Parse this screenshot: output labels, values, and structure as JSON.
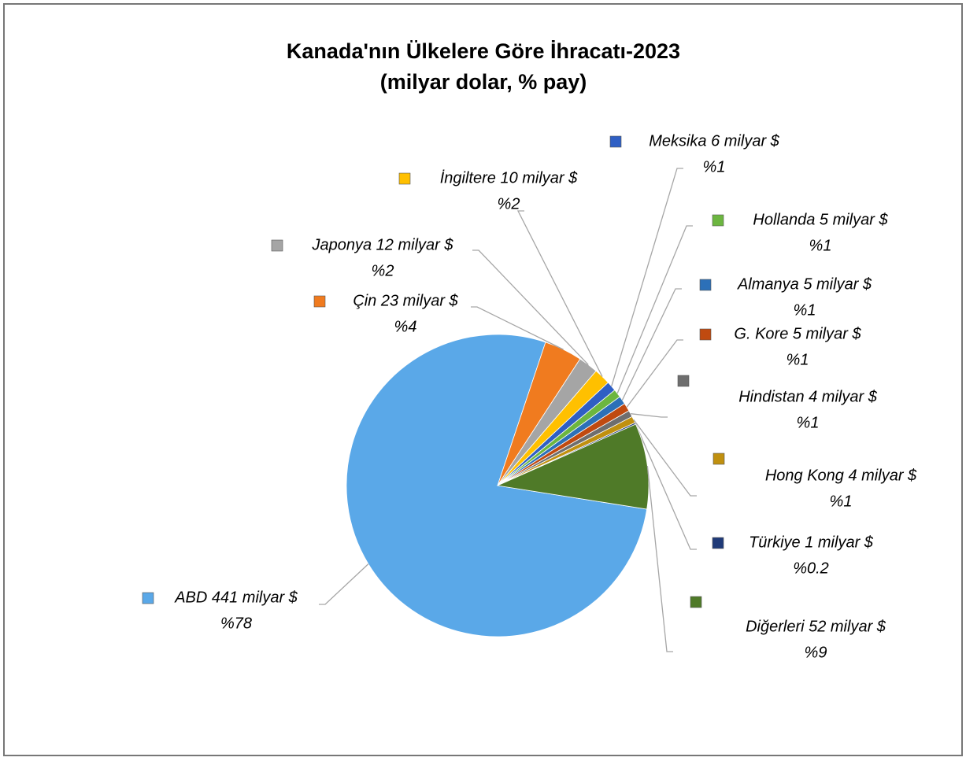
{
  "chart_data": {
    "type": "pie",
    "title": "Kanada'nın Ülkelere Göre İhracatı-2023",
    "subtitle": "(milyar dolar, % pay)",
    "values": [
      441,
      23,
      12,
      10,
      6,
      5,
      5,
      5,
      4,
      4,
      1,
      52
    ],
    "value_labels": [
      "ABD 441 milyar $",
      "Çin 23 milyar $",
      "Japonya 12 milyar $",
      "İngiltere 10 milyar $",
      "Meksika 6 milyar $",
      "Hollanda 5 milyar $",
      "Almanya 5 milyar $",
      "G. Kore 5 milyar $",
      "Hindistan 4 milyar $",
      "Hong Kong 4 milyar $",
      "Türkiye 1 milyar $",
      "Diğerleri 52 milyar $"
    ],
    "share_labels": [
      "%78",
      "%4",
      "%2",
      "%2",
      "%1",
      "%1",
      "%1",
      "%1",
      "%1",
      "%1",
      "%0.2",
      "%9"
    ],
    "colors": [
      "#5aa8e8",
      "#f07b1f",
      "#a5a5a5",
      "#ffc000",
      "#2f5fc4",
      "#6cb640",
      "#2c70b8",
      "#c04a10",
      "#6e6e6e",
      "#c0900f",
      "#1f3a78",
      "#4f7a28"
    ]
  }
}
